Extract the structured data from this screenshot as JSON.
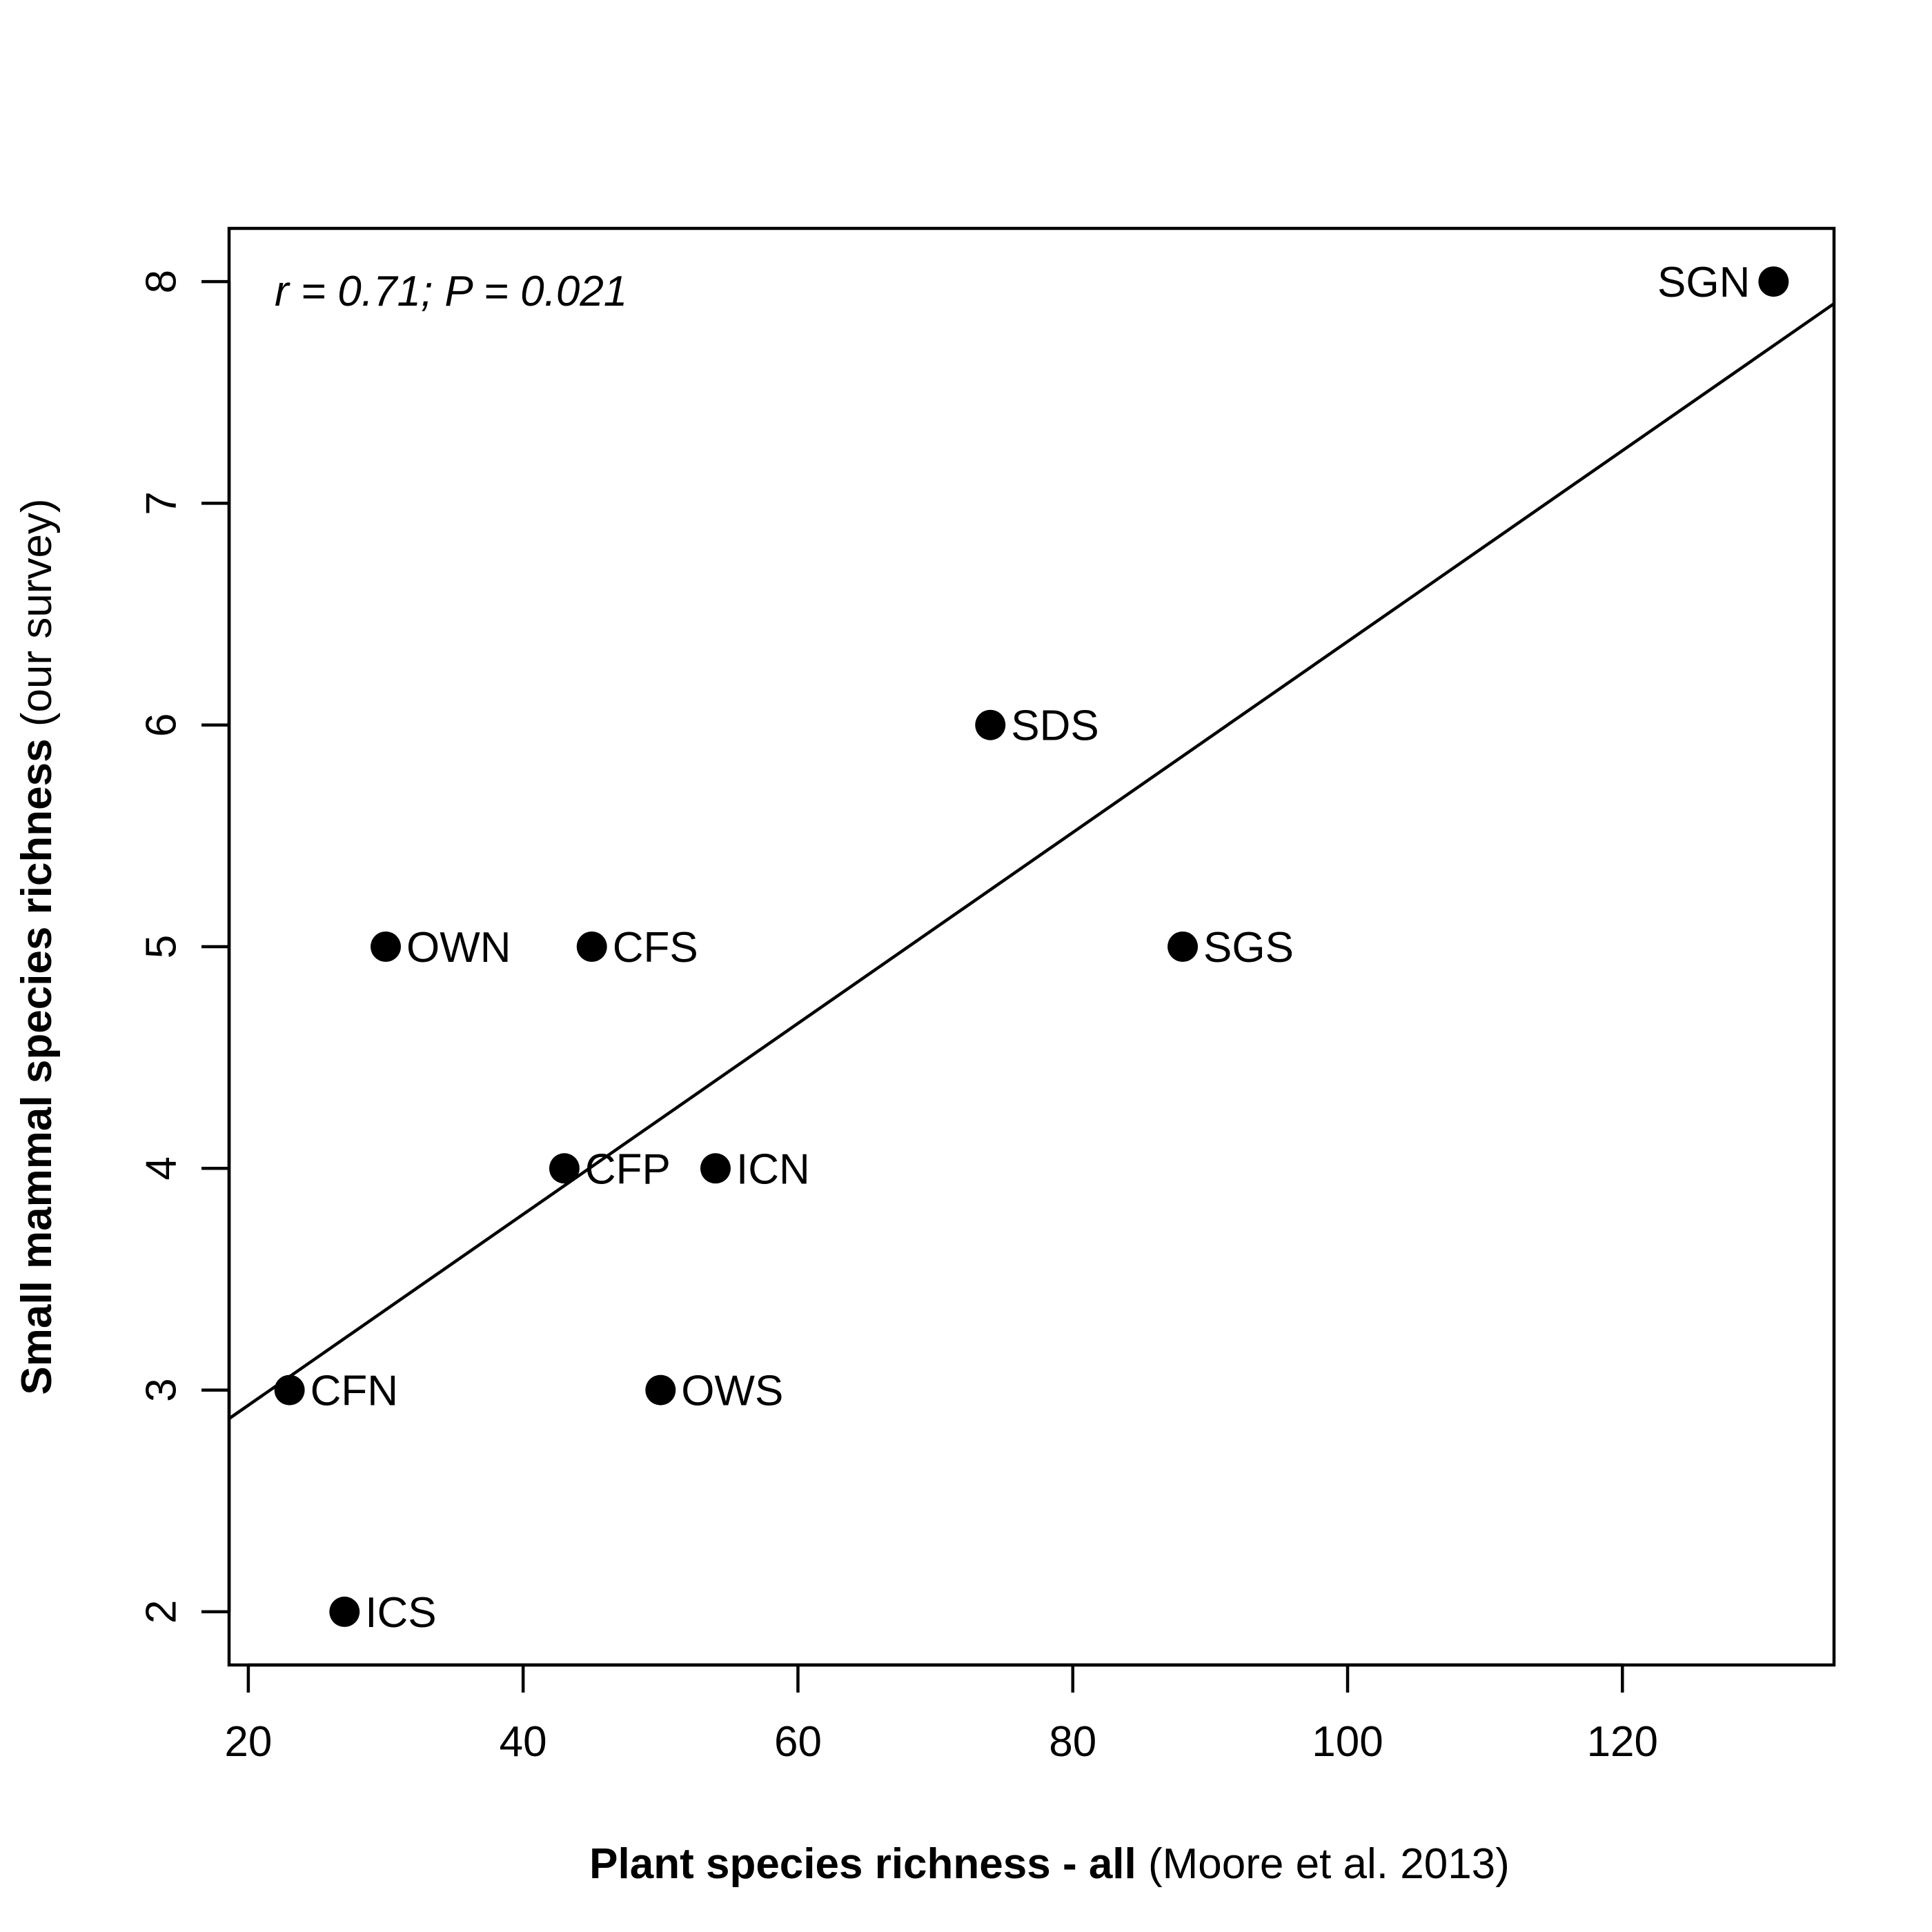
{
  "chart_data": {
    "type": "scatter",
    "xlabel_bold": "Plant species richness - all",
    "xlabel_normal": " (Moore et al. 2013)",
    "ylabel_bold": "Small mammal species richness",
    "ylabel_normal": " (our survey)",
    "annotation": "r = 0.71; P = 0.021",
    "xlim": [
      18.6,
      135.4
    ],
    "ylim": [
      1.76,
      8.24
    ],
    "x_ticks": [
      20,
      40,
      60,
      80,
      100,
      120
    ],
    "y_ticks": [
      2,
      3,
      4,
      5,
      6,
      7,
      8
    ],
    "points": [
      {
        "label": "SGN",
        "x": 131,
        "y": 8,
        "label_side": "left"
      },
      {
        "label": "SDS",
        "x": 74,
        "y": 6,
        "label_side": "right"
      },
      {
        "label": "OWN",
        "x": 30,
        "y": 5,
        "label_side": "right"
      },
      {
        "label": "CFS",
        "x": 45,
        "y": 5,
        "label_side": "right"
      },
      {
        "label": "SGS",
        "x": 88,
        "y": 5,
        "label_side": "right"
      },
      {
        "label": "CFP",
        "x": 43,
        "y": 4,
        "label_side": "right"
      },
      {
        "label": "ICN",
        "x": 54,
        "y": 4,
        "label_side": "right"
      },
      {
        "label": "CFN",
        "x": 23,
        "y": 3,
        "label_side": "right"
      },
      {
        "label": "OWS",
        "x": 50,
        "y": 3,
        "label_side": "right"
      },
      {
        "label": "ICS",
        "x": 27,
        "y": 2,
        "label_side": "right"
      }
    ],
    "fit_line": {
      "intercept": 2.0703,
      "slope": 0.04306
    },
    "grid": false,
    "legend": "none"
  }
}
